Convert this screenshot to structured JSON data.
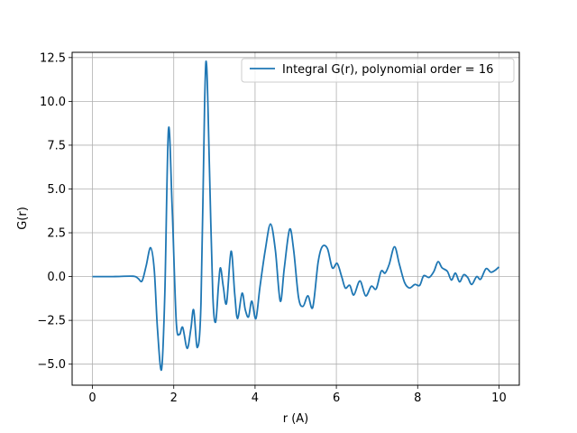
{
  "chart_data": {
    "type": "line",
    "title": "",
    "xlabel": "r (A)",
    "ylabel": "G(r)",
    "xlim": [
      -0.5,
      10.5
    ],
    "ylim": [
      -6.2,
      12.8
    ],
    "xticks": [
      0,
      2,
      4,
      6,
      8,
      10
    ],
    "xtick_labels": [
      "0",
      "2",
      "4",
      "6",
      "8",
      "10"
    ],
    "yticks": [
      -5.0,
      -2.5,
      0.0,
      2.5,
      5.0,
      7.5,
      10.0,
      12.5
    ],
    "ytick_labels": [
      "−5.0",
      "−2.5",
      "0.0",
      "2.5",
      "5.0",
      "7.5",
      "10.0",
      "12.5"
    ],
    "grid": true,
    "legend_position": "top-right",
    "series": [
      {
        "name": "Integral G(r), polynomial order = 16",
        "color": "#1f77b4",
        "points": [
          [
            0.0,
            0.0
          ],
          [
            0.5,
            0.0
          ],
          [
            1.0,
            0.02
          ],
          [
            1.12,
            -0.1
          ],
          [
            1.22,
            -0.25
          ],
          [
            1.32,
            0.6
          ],
          [
            1.43,
            1.65
          ],
          [
            1.52,
            0.4
          ],
          [
            1.6,
            -3.0
          ],
          [
            1.7,
            -5.3
          ],
          [
            1.78,
            -1.0
          ],
          [
            1.87,
            8.4
          ],
          [
            1.96,
            4.0
          ],
          [
            2.06,
            -2.5
          ],
          [
            2.14,
            -3.3
          ],
          [
            2.22,
            -2.9
          ],
          [
            2.33,
            -4.1
          ],
          [
            2.42,
            -3.0
          ],
          [
            2.49,
            -1.9
          ],
          [
            2.58,
            -4.05
          ],
          [
            2.67,
            -1.5
          ],
          [
            2.76,
            10.0
          ],
          [
            2.81,
            12.0
          ],
          [
            2.88,
            6.0
          ],
          [
            2.96,
            -1.0
          ],
          [
            3.03,
            -2.6
          ],
          [
            3.1,
            -0.5
          ],
          [
            3.15,
            0.5
          ],
          [
            3.22,
            -0.6
          ],
          [
            3.3,
            -1.5
          ],
          [
            3.41,
            1.45
          ],
          [
            3.5,
            -1.0
          ],
          [
            3.57,
            -2.4
          ],
          [
            3.68,
            -0.95
          ],
          [
            3.76,
            -1.9
          ],
          [
            3.84,
            -2.3
          ],
          [
            3.92,
            -1.4
          ],
          [
            4.02,
            -2.4
          ],
          [
            4.12,
            -0.6
          ],
          [
            4.25,
            1.5
          ],
          [
            4.38,
            3.0
          ],
          [
            4.5,
            1.5
          ],
          [
            4.62,
            -1.4
          ],
          [
            4.72,
            0.5
          ],
          [
            4.85,
            2.7
          ],
          [
            4.95,
            1.5
          ],
          [
            5.07,
            -1.2
          ],
          [
            5.18,
            -1.7
          ],
          [
            5.3,
            -1.1
          ],
          [
            5.42,
            -1.75
          ],
          [
            5.55,
            0.8
          ],
          [
            5.65,
            1.7
          ],
          [
            5.78,
            1.6
          ],
          [
            5.9,
            0.5
          ],
          [
            6.02,
            0.75
          ],
          [
            6.13,
            0.0
          ],
          [
            6.22,
            -0.65
          ],
          [
            6.33,
            -0.5
          ],
          [
            6.43,
            -1.05
          ],
          [
            6.58,
            -0.25
          ],
          [
            6.72,
            -1.1
          ],
          [
            6.86,
            -0.55
          ],
          [
            6.98,
            -0.7
          ],
          [
            7.1,
            0.3
          ],
          [
            7.2,
            0.2
          ],
          [
            7.3,
            0.7
          ],
          [
            7.43,
            1.7
          ],
          [
            7.55,
            0.7
          ],
          [
            7.68,
            -0.35
          ],
          [
            7.8,
            -0.65
          ],
          [
            7.93,
            -0.45
          ],
          [
            8.05,
            -0.5
          ],
          [
            8.15,
            0.05
          ],
          [
            8.28,
            -0.05
          ],
          [
            8.4,
            0.3
          ],
          [
            8.5,
            0.85
          ],
          [
            8.6,
            0.5
          ],
          [
            8.73,
            0.3
          ],
          [
            8.83,
            -0.2
          ],
          [
            8.93,
            0.2
          ],
          [
            9.03,
            -0.3
          ],
          [
            9.13,
            0.1
          ],
          [
            9.23,
            -0.05
          ],
          [
            9.33,
            -0.45
          ],
          [
            9.45,
            0.0
          ],
          [
            9.55,
            -0.15
          ],
          [
            9.68,
            0.45
          ],
          [
            9.8,
            0.25
          ],
          [
            9.9,
            0.35
          ],
          [
            10.0,
            0.55
          ]
        ]
      }
    ]
  }
}
